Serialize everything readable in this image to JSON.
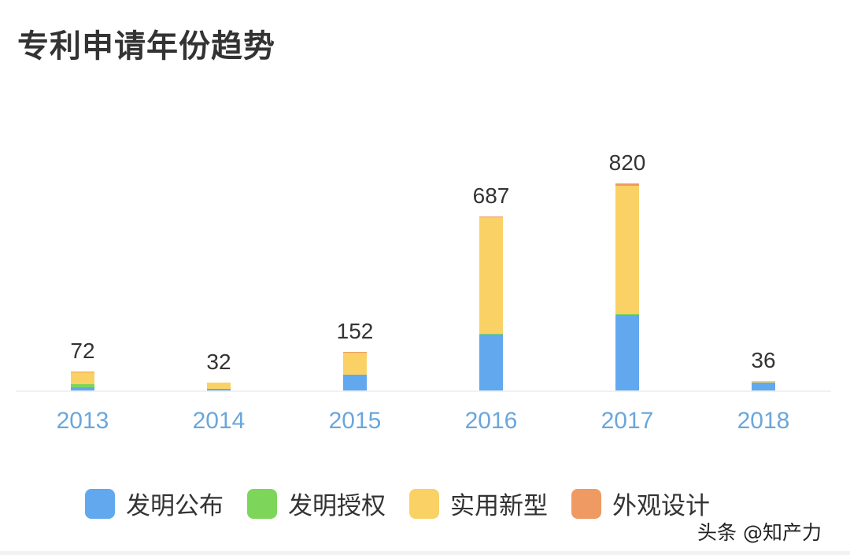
{
  "title": "专利申请年份趋势",
  "watermark": "头条 @知产力",
  "legend": [
    {
      "label": "发明公布",
      "color": "#62a8ef"
    },
    {
      "label": "发明授权",
      "color": "#7dd65a"
    },
    {
      "label": "实用新型",
      "color": "#f9d165"
    },
    {
      "label": "外观设计",
      "color": "#ef9a62"
    }
  ],
  "chart_data": {
    "type": "bar",
    "stacked": true,
    "title": "专利申请年份趋势",
    "xlabel": "",
    "ylabel": "",
    "categories": [
      "2013",
      "2014",
      "2015",
      "2016",
      "2017",
      "2018"
    ],
    "totals": [
      72,
      32,
      152,
      687,
      820,
      36
    ],
    "series": [
      {
        "name": "发明公布",
        "color": "#62a8ef",
        "values": [
          12,
          7,
          62,
          221,
          300,
          30
        ]
      },
      {
        "name": "发明授权",
        "color": "#7dd65a",
        "values": [
          12,
          0,
          0,
          3,
          4,
          0
        ]
      },
      {
        "name": "实用新型",
        "color": "#f9d165",
        "values": [
          47,
          25,
          89,
          461,
          508,
          6
        ]
      },
      {
        "name": "外观设计",
        "color": "#ef9a62",
        "values": [
          1,
          0,
          1,
          2,
          8,
          0
        ]
      }
    ],
    "ylim": [
      0,
      820
    ],
    "grid": false,
    "legend_position": "bottom",
    "data_labels": "totals above bars"
  }
}
